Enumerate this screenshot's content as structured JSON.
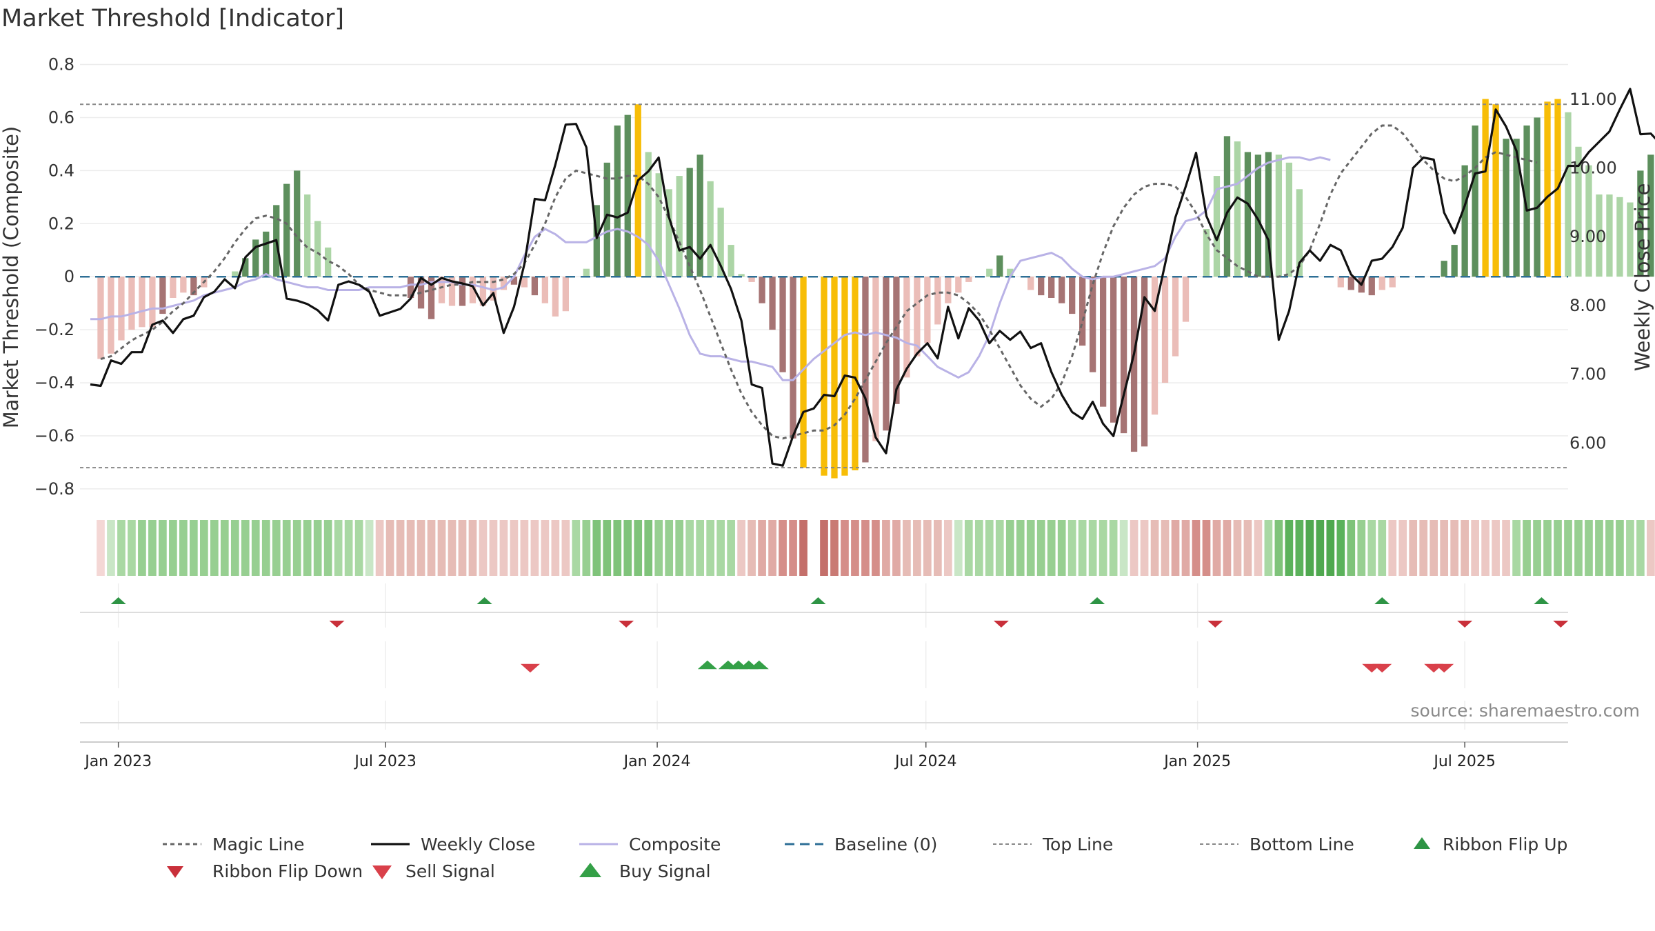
{
  "chart_data": {
    "type": "bar",
    "title": "Market Threshold [Indicator]",
    "ylabel": "Market Threshold (Composite)",
    "y2label": "Weekly Close Price",
    "source": "source: sharemaestro.com",
    "x_range": [
      "2022-12-06",
      "2025-09-09"
    ],
    "ylim": [
      -0.86,
      0.83
    ],
    "y2lim": [
      5.1,
      11.62
    ],
    "y_ticks": [
      0.8,
      0.6,
      0.4,
      0.2,
      0,
      -0.2,
      -0.4,
      -0.6,
      -0.8
    ],
    "y_tick_labels": [
      "0.8",
      "0.6",
      "0.4",
      "0.2",
      "0",
      "−0.2",
      "−0.4",
      "−0.6",
      "−0.8"
    ],
    "y2_ticks": [
      11,
      10,
      9,
      8,
      7,
      6
    ],
    "y2_tick_labels": [
      "11.00",
      "10.00",
      "9.00",
      "8.00",
      "7.00",
      "6.00"
    ],
    "x_ticks": [
      {
        "date": "2023-01-01",
        "label": "Jan 2023"
      },
      {
        "date": "2023-07-01",
        "label": "Jul 2023"
      },
      {
        "date": "2024-01-01",
        "label": "Jan 2024"
      },
      {
        "date": "2024-07-01",
        "label": "Jul 2024"
      },
      {
        "date": "2025-01-01",
        "label": "Jan 2025"
      },
      {
        "date": "2025-07-01",
        "label": "Jul 2025"
      }
    ],
    "top_line": 0.65,
    "bottom_line": -0.72,
    "baseline": 0,
    "colors": {
      "strong_pos": "#5d8f5d",
      "light_pos": "#acd5a6",
      "extreme": "#f7bd07",
      "strong_neg": "#a67474",
      "light_neg": "#ebbdb8",
      "magic_line": "#666666",
      "weekly_close": "#111111",
      "composite": "#b9b2e6",
      "baseline": "#2e6f96",
      "ref_line": "#888888",
      "flip_up": "#2e9445",
      "flip_down": "#c9303a",
      "sell": "#d9404a",
      "buy": "#34a047"
    },
    "bars": {
      "start": "2022-12-20",
      "step_days": 7,
      "values": [
        -0.31,
        -0.29,
        -0.24,
        -0.2,
        -0.19,
        -0.19,
        -0.14,
        -0.08,
        -0.06,
        -0.07,
        -0.04,
        0.0,
        0.0,
        0.02,
        0.07,
        0.14,
        0.17,
        0.27,
        0.35,
        0.4,
        0.31,
        0.21,
        0.11,
        0.0,
        0.0,
        0.0,
        0.0,
        0.0,
        0.0,
        0.0,
        -0.08,
        -0.12,
        -0.16,
        -0.1,
        -0.11,
        -0.11,
        -0.1,
        -0.11,
        -0.09,
        -0.05,
        -0.03,
        -0.04,
        -0.07,
        -0.1,
        -0.15,
        -0.13,
        0.0,
        0.03,
        0.27,
        0.43,
        0.57,
        0.61,
        0.65,
        0.47,
        0.39,
        0.33,
        0.38,
        0.41,
        0.46,
        0.36,
        0.26,
        0.12,
        0.01,
        -0.02,
        -0.1,
        -0.2,
        -0.36,
        -0.61,
        -0.72,
        0.0,
        -0.75,
        -0.76,
        -0.75,
        -0.73,
        -0.7,
        -0.62,
        -0.58,
        -0.48,
        -0.38,
        -0.3,
        -0.25,
        -0.18,
        -0.1,
        -0.06,
        -0.02,
        0.0,
        0.03,
        0.08,
        0.03,
        0.0,
        -0.05,
        -0.07,
        -0.08,
        -0.1,
        -0.14,
        -0.26,
        -0.36,
        -0.49,
        -0.55,
        -0.59,
        -0.66,
        -0.64,
        -0.52,
        -0.4,
        -0.3,
        -0.17,
        0.0,
        0.18,
        0.38,
        0.53,
        0.51,
        0.47,
        0.46,
        0.47,
        0.46,
        0.43,
        0.33,
        0.0,
        0.0,
        0.0,
        -0.04,
        -0.05,
        -0.06,
        -0.07,
        -0.05,
        -0.04,
        0.0,
        0.0,
        0.0,
        0.0,
        0.06,
        0.12,
        0.42,
        0.57,
        0.67,
        0.65,
        0.52,
        0.52,
        0.57,
        0.6,
        0.66,
        0.67,
        0.62,
        0.49,
        0.42,
        0.31,
        0.31,
        0.3,
        0.28,
        0.4,
        0.46,
        0.51,
        0.55,
        0.53,
        0.48,
        0.41,
        0.4
      ],
      "kinds": [
        "ln",
        "ln",
        "ln",
        "ln",
        "ln",
        "ln",
        "sn",
        "ln",
        "ln",
        "sn",
        "ln",
        "lp",
        "lp",
        "lp",
        "sp",
        "sp",
        "sp",
        "sp",
        "sp",
        "sp",
        "lp",
        "lp",
        "lp",
        "lp",
        "lp",
        "lp",
        "lp",
        "lp",
        "lp",
        "lp",
        "sn",
        "sn",
        "sn",
        "ln",
        "ln",
        "sn",
        "ln",
        "ln",
        "ln",
        "ln",
        "sn",
        "ln",
        "sn",
        "ln",
        "ln",
        "ln",
        "lp",
        "lp",
        "sp",
        "sp",
        "sp",
        "sp",
        "ex",
        "lp",
        "lp",
        "lp",
        "lp",
        "sp",
        "sp",
        "lp",
        "lp",
        "lp",
        "lp",
        "ln",
        "sn",
        "sn",
        "sn",
        "sn",
        "ex",
        "lp",
        "ex",
        "ex",
        "ex",
        "ex",
        "sn",
        "ln",
        "sn",
        "sn",
        "ln",
        "ln",
        "ln",
        "ln",
        "ln",
        "ln",
        "ln",
        "lp",
        "lp",
        "sp",
        "lp",
        "lp",
        "ln",
        "sn",
        "sn",
        "sn",
        "sn",
        "sn",
        "sn",
        "sn",
        "sn",
        "sn",
        "sn",
        "sn",
        "ln",
        "ln",
        "ln",
        "ln",
        "ln",
        "lp",
        "lp",
        "sp",
        "lp",
        "sp",
        "sp",
        "sp",
        "lp",
        "lp",
        "lp",
        "lp",
        "lp",
        "lp",
        "ln",
        "sn",
        "sn",
        "sn",
        "ln",
        "ln",
        "lp",
        "lp",
        "lp",
        "lp",
        "sp",
        "sp",
        "sp",
        "sp",
        "ex",
        "ex",
        "sp",
        "sp",
        "sp",
        "sp",
        "ex",
        "ex",
        "lp",
        "lp",
        "lp",
        "lp",
        "lp",
        "lp",
        "lp",
        "sp",
        "sp",
        "sp",
        "sp",
        "lp",
        "lp",
        "lp",
        "lp"
      ]
    },
    "ribbon": {
      "start": "2022-12-20",
      "step_days": 7,
      "colors": [
        "#f4d7d5",
        "#c9e6c6",
        "#a9d8a3",
        "#a9d8a3",
        "#97cf91",
        "#97cf91",
        "#97cf91",
        "#97cf91",
        "#97cf91",
        "#97cf91",
        "#97cf91",
        "#97cf91",
        "#97cf91",
        "#97cf91",
        "#97cf91",
        "#97cf91",
        "#97cf91",
        "#97cf91",
        "#97cf91",
        "#97cf91",
        "#97cf91",
        "#97cf91",
        "#97cf91",
        "#a9d8a3",
        "#a9d8a3",
        "#a9d8a3",
        "#c9e6c6",
        "#ecc8c4",
        "#e6bcb6",
        "#e6bcb6",
        "#e6bcb6",
        "#e6bcb6",
        "#e6bcb6",
        "#e6bcb6",
        "#e6bcb6",
        "#e6bcb6",
        "#e6bcb6",
        "#ecc8c4",
        "#ecc8c4",
        "#ecc8c4",
        "#ecc8c4",
        "#ecc8c4",
        "#ecc8c4",
        "#ecc8c4",
        "#ecc8c4",
        "#ecc8c4",
        "#a9d8a3",
        "#97cf91",
        "#7fc37a",
        "#7fc37a",
        "#7fc37a",
        "#7fc37a",
        "#7fc37a",
        "#7fc37a",
        "#97cf91",
        "#97cf91",
        "#97cf91",
        "#a9d8a3",
        "#a9d8a3",
        "#a9d8a3",
        "#a9d8a3",
        "#a9d8a3",
        "#ecc8c4",
        "#e6bcb6",
        "#e0aaa5",
        "#e0aaa5",
        "#d58e89",
        "#d58e89",
        "#c46f6a",
        "#ffffff",
        "#c46f6a",
        "#c97a74",
        "#d58e89",
        "#d58e89",
        "#d58e89",
        "#d58e89",
        "#e0aaa5",
        "#e0aaa5",
        "#e6bcb6",
        "#e6bcb6",
        "#e6bcb6",
        "#e6bcb6",
        "#ecc8c4",
        "#c9e6c6",
        "#a9d8a3",
        "#a9d8a3",
        "#a9d8a3",
        "#a9d8a3",
        "#97cf91",
        "#97cf91",
        "#97cf91",
        "#97cf91",
        "#97cf91",
        "#97cf91",
        "#a9d8a3",
        "#a9d8a3",
        "#a9d8a3",
        "#a9d8a3",
        "#a9d8a3",
        "#c9e6c6",
        "#ecc8c4",
        "#ecc8c4",
        "#e6bcb6",
        "#e6bcb6",
        "#e0aaa5",
        "#e0aaa5",
        "#d58e89",
        "#d58e89",
        "#e0aaa5",
        "#e0aaa5",
        "#e6bcb6",
        "#e6bcb6",
        "#ecc8c4",
        "#a9d8a3",
        "#7fc37a",
        "#5bb25b",
        "#5bb25b",
        "#4fa84f",
        "#4fa84f",
        "#4fa84f",
        "#5bb25b",
        "#7fc37a",
        "#97cf91",
        "#a9d8a3",
        "#a9d8a3",
        "#ecc8c4",
        "#ecc8c4",
        "#e6bcb6",
        "#e6bcb6",
        "#e6bcb6",
        "#e6bcb6",
        "#e6bcb6",
        "#e6bcb6",
        "#ecc8c4",
        "#ecc8c4",
        "#ecc8c4",
        "#ecc8c4",
        "#a9d8a3",
        "#97cf91",
        "#97cf91",
        "#97cf91",
        "#97cf91",
        "#97cf91",
        "#97cf91",
        "#97cf91",
        "#97cf91",
        "#97cf91",
        "#97cf91",
        "#a9d8a3",
        "#a9d8a3",
        "#ecc8c4",
        "#ecc8c4",
        "#ecc8c4",
        "#ecc8c4",
        "#ecc8c4",
        "#ecc8c4",
        "#ecc8c4",
        "#c9e6c6",
        "#c9e6c6",
        "#c9e6c6",
        "#c9e6c6",
        "#f4d7d5"
      ]
    },
    "weekly_close": {
      "start": "2022-12-13",
      "step_days": 7,
      "values": [
        6.85,
        6.83,
        7.2,
        7.15,
        7.32,
        7.32,
        7.72,
        7.78,
        7.6,
        7.8,
        7.85,
        8.12,
        8.2,
        8.38,
        8.25,
        8.7,
        8.85,
        8.9,
        8.95,
        8.1,
        8.07,
        8.02,
        7.93,
        7.78,
        8.3,
        8.35,
        8.3,
        8.2,
        7.85,
        7.9,
        7.95,
        8.1,
        8.4,
        8.3,
        8.4,
        8.35,
        8.32,
        8.28,
        8.0,
        8.18,
        7.6,
        7.98,
        8.6,
        9.55,
        9.53,
        10.05,
        10.63,
        10.64,
        10.3,
        8.98,
        9.32,
        9.28,
        9.35,
        9.82,
        9.95,
        10.15,
        9.28,
        8.8,
        8.85,
        8.68,
        8.88,
        8.58,
        8.24,
        7.78,
        6.85,
        6.8,
        5.7,
        5.67,
        6.1,
        6.45,
        6.5,
        6.7,
        6.68,
        6.98,
        6.95,
        6.65,
        6.08,
        5.85,
        6.78,
        7.08,
        7.3,
        7.45,
        7.23,
        7.98,
        7.52,
        7.96,
        7.78,
        7.45,
        7.63,
        7.5,
        7.62,
        7.38,
        7.45,
        7.03,
        6.7,
        6.45,
        6.35,
        6.6,
        6.28,
        6.1,
        6.7,
        7.3,
        8.12,
        7.92,
        8.6,
        9.28,
        9.73,
        10.22,
        9.3,
        8.95,
        9.35,
        9.57,
        9.48,
        9.25,
        8.95,
        7.5,
        7.92,
        8.62,
        8.8,
        8.65,
        8.88,
        8.8,
        8.45,
        8.3,
        8.65,
        8.68,
        8.85,
        9.13,
        10.0,
        10.15,
        10.12,
        9.35,
        9.05,
        9.45,
        9.92,
        9.95,
        10.85,
        10.6,
        10.25,
        9.38,
        9.42,
        9.58,
        9.7,
        10.03,
        10.03,
        10.23,
        10.38,
        10.53,
        10.85,
        11.15,
        10.49,
        10.5,
        10.34,
        10.09
      ],
      "note": "right axis"
    },
    "magic_line": {
      "start": "2022-12-20",
      "step_days": 7,
      "values": [
        -0.31,
        -0.3,
        -0.27,
        -0.24,
        -0.22,
        -0.2,
        -0.17,
        -0.13,
        -0.1,
        -0.06,
        -0.02,
        0.02,
        0.07,
        0.13,
        0.18,
        0.22,
        0.23,
        0.22,
        0.2,
        0.15,
        0.11,
        0.09,
        0.06,
        0.04,
        0.01,
        -0.03,
        -0.05,
        -0.06,
        -0.07,
        -0.07,
        -0.07,
        -0.06,
        -0.05,
        -0.04,
        -0.03,
        -0.03,
        -0.02,
        -0.02,
        -0.02,
        -0.01,
        0.01,
        0.05,
        0.12,
        0.2,
        0.3,
        0.37,
        0.4,
        0.39,
        0.38,
        0.37,
        0.37,
        0.38,
        0.38,
        0.35,
        0.3,
        0.22,
        0.13,
        0.04,
        -0.05,
        -0.15,
        -0.25,
        -0.35,
        -0.44,
        -0.51,
        -0.56,
        -0.6,
        -0.61,
        -0.6,
        -0.59,
        -0.58,
        -0.58,
        -0.56,
        -0.52,
        -0.46,
        -0.39,
        -0.32,
        -0.25,
        -0.19,
        -0.13,
        -0.1,
        -0.07,
        -0.06,
        -0.06,
        -0.07,
        -0.1,
        -0.14,
        -0.2,
        -0.27,
        -0.34,
        -0.41,
        -0.46,
        -0.49,
        -0.46,
        -0.4,
        -0.3,
        -0.17,
        -0.03,
        0.09,
        0.19,
        0.26,
        0.31,
        0.34,
        0.35,
        0.35,
        0.34,
        0.3,
        0.24,
        0.16,
        0.1,
        0.07,
        0.04,
        0.02,
        0.0,
        0.0,
        0.0,
        0.01,
        0.04,
        0.1,
        0.2,
        0.31,
        0.39,
        0.44,
        0.49,
        0.54,
        0.57,
        0.57,
        0.54,
        0.49,
        0.44,
        0.4,
        0.37,
        0.36,
        0.38,
        0.41,
        0.45,
        0.47,
        0.46,
        0.45,
        0.44,
        0.43
      ]
    },
    "magic_line_offset": 32,
    "composite": {
      "start": "2022-12-13",
      "step_days": 7,
      "values": [
        -0.16,
        -0.16,
        -0.15,
        -0.15,
        -0.14,
        -0.13,
        -0.12,
        -0.12,
        -0.11,
        -0.1,
        -0.09,
        -0.07,
        -0.06,
        -0.05,
        -0.04,
        -0.02,
        -0.01,
        0.01,
        -0.01,
        -0.02,
        -0.03,
        -0.04,
        -0.04,
        -0.05,
        -0.05,
        -0.05,
        -0.05,
        -0.04,
        -0.04,
        -0.04,
        -0.04,
        -0.03,
        -0.03,
        -0.02,
        -0.02,
        -0.02,
        -0.03,
        -0.03,
        -0.04,
        -0.05,
        -0.04,
        0.0,
        0.08,
        0.15,
        0.18,
        0.16,
        0.13,
        0.13,
        0.13,
        0.15,
        0.17,
        0.18,
        0.17,
        0.15,
        0.12,
        0.06,
        -0.03,
        -0.12,
        -0.22,
        -0.29,
        -0.3,
        -0.3,
        -0.31,
        -0.32,
        -0.32,
        -0.33,
        -0.34,
        -0.39,
        -0.39,
        -0.35,
        -0.31,
        -0.28,
        -0.25,
        -0.22,
        -0.21,
        -0.22,
        -0.21,
        -0.22,
        -0.23,
        -0.25,
        -0.26,
        -0.3,
        -0.34,
        -0.36,
        -0.38,
        -0.36,
        -0.3,
        -0.22,
        -0.1,
        0.0,
        0.06,
        0.07,
        0.08,
        0.09,
        0.07,
        0.03,
        0.0,
        -0.01,
        0.0,
        0.0,
        0.01,
        0.02,
        0.03,
        0.04,
        0.07,
        0.15,
        0.21,
        0.22,
        0.25,
        0.33,
        0.34,
        0.35,
        0.38,
        0.41,
        0.43,
        0.44,
        0.45,
        0.45,
        0.44
      ]
    },
    "composite_offset": 38,
    "composite_extension": [
      0.45,
      0.44
    ],
    "markers": {
      "ribbon_flip_up": [
        {
          "x": "2023-01-01",
          "value": 1
        },
        {
          "x": "2023-09-06",
          "value": 1
        },
        {
          "x": "2024-04-19",
          "value": 1
        },
        {
          "x": "2024-10-25",
          "value": 1
        },
        {
          "x": "2025-05-06",
          "value": 1
        },
        {
          "x": "2025-08-22",
          "value": 1
        }
      ],
      "ribbon_flip_down": [
        {
          "x": "2023-05-29",
          "value": 1
        },
        {
          "x": "2023-12-11",
          "value": 1
        },
        {
          "x": "2024-08-21",
          "value": 1
        },
        {
          "x": "2025-01-13",
          "value": 1
        },
        {
          "x": "2025-07-01",
          "value": 1
        },
        {
          "x": "2025-09-04",
          "value": 1
        }
      ],
      "sell_signal": [
        {
          "x": "2023-10-07",
          "value": 1
        },
        {
          "x": "2025-04-29",
          "value": 1
        },
        {
          "x": "2025-05-06",
          "value": 1
        },
        {
          "x": "2025-06-10",
          "value": 1
        },
        {
          "x": "2025-06-17",
          "value": 1
        }
      ],
      "buy_signal": [
        {
          "x": "2024-02-04",
          "value": 1
        },
        {
          "x": "2024-02-18",
          "value": 1
        },
        {
          "x": "2024-02-25",
          "value": 1
        },
        {
          "x": "2024-03-03",
          "value": 1
        },
        {
          "x": "2024-03-10",
          "value": 1
        }
      ]
    },
    "legend": [
      {
        "key": "magic",
        "label": "Magic Line"
      },
      {
        "key": "close",
        "label": "Weekly Close"
      },
      {
        "key": "composite",
        "label": "Composite"
      },
      {
        "key": "baseline",
        "label": "Baseline (0)"
      },
      {
        "key": "top",
        "label": "Top Line"
      },
      {
        "key": "bottom",
        "label": "Bottom Line"
      },
      {
        "key": "flipup",
        "label": "Ribbon Flip Up"
      },
      {
        "key": "flipdown",
        "label": "Ribbon Flip Down"
      },
      {
        "key": "sell",
        "label": "Sell Signal"
      },
      {
        "key": "buy",
        "label": "Buy Signal"
      }
    ],
    "legend_placement": "bottom",
    "grid": true
  }
}
